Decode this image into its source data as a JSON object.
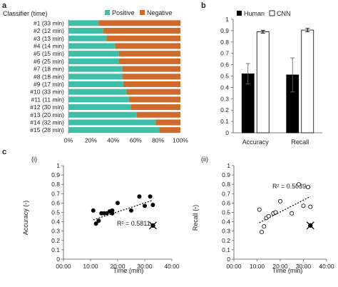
{
  "panels": {
    "a": "a",
    "b": "b",
    "c": "c",
    "c_i": "(i)",
    "c_ii": "(ii)"
  },
  "colors": {
    "positive": "#3dbfa8",
    "negative": "#cf6a2a",
    "human": "#000000",
    "cnn": "#ffffff"
  },
  "chart_data": [
    {
      "type": "bar",
      "orientation": "horizontal",
      "stacked": true,
      "title": "Classifier (time)",
      "categories": [
        "#1 (33 min)",
        "#2 (12 min)",
        "#3 (13 min)",
        "#4 (14 min)",
        "#5 (15 min)",
        "#6 (25 min)",
        "#7 (18 min)",
        "#8 (18 min)",
        "#9 (17 min)",
        "#10 (33 min)",
        "#11 (11 min)",
        "#12 (30 min)",
        "#13 (20 min)",
        "#14 (32 min)",
        "#15 (28 min)"
      ],
      "series": [
        {
          "name": "Positive",
          "values": [
            0.27,
            0.31,
            0.34,
            0.42,
            0.45,
            0.45,
            0.48,
            0.48,
            0.49,
            0.52,
            0.54,
            0.56,
            0.61,
            0.78,
            0.81
          ]
        },
        {
          "name": "Negative",
          "values": [
            0.73,
            0.69,
            0.66,
            0.58,
            0.55,
            0.55,
            0.52,
            0.52,
            0.51,
            0.48,
            0.46,
            0.44,
            0.39,
            0.22,
            0.19
          ]
        }
      ],
      "xticks": [
        "0%",
        "20%",
        "40%",
        "60%",
        "80%",
        "100%"
      ],
      "xlim": [
        0,
        1
      ],
      "legend": "top"
    },
    {
      "type": "bar",
      "categories": [
        "Accuracy",
        "Recall"
      ],
      "series": [
        {
          "name": "Human",
          "values": [
            0.52,
            0.51
          ],
          "errors": [
            0.09,
            0.15
          ]
        },
        {
          "name": "CNN",
          "values": [
            0.89,
            0.905
          ],
          "errors": [
            0.012,
            0.015
          ]
        }
      ],
      "yticks": [
        "0",
        "0.1",
        "0.2",
        "0.3",
        "0.4",
        "0.5",
        "0.6",
        "0.7",
        "0.8",
        "0.9",
        "1"
      ],
      "ylim": [
        0,
        1
      ],
      "legend": "top"
    },
    {
      "type": "scatter",
      "ylabel": "Accuracy (-)",
      "xlabel": "Time (min)",
      "x": [
        11,
        12,
        13,
        14,
        15,
        16,
        17,
        18,
        18,
        20,
        25,
        28,
        30,
        32,
        33
      ],
      "y": [
        0.52,
        0.38,
        0.41,
        0.49,
        0.49,
        0.49,
        0.51,
        0.49,
        0.52,
        0.6,
        0.52,
        0.67,
        0.57,
        0.67,
        0.58
      ],
      "marker": "filled",
      "special_point": {
        "x": 33,
        "y": 0.36
      },
      "trendline": {
        "type": "linear",
        "label": "R² = 0.5811",
        "x": [
          11,
          33
        ],
        "y": [
          0.42,
          0.63
        ]
      },
      "xticks": [
        "00:00",
        "10:00",
        "20:00",
        "30:00",
        "40:00"
      ],
      "xlim": [
        0,
        40
      ],
      "yticks": [
        "0",
        "0.1",
        "0.2",
        "0.3",
        "0.4",
        "0.5",
        "0.6",
        "0.7",
        "0.8",
        "0.9",
        "1"
      ],
      "ylim": [
        0,
        1
      ]
    },
    {
      "type": "scatter",
      "ylabel": "Recall (-)",
      "xlabel": "Time (min)",
      "x": [
        11,
        12,
        13,
        14,
        15,
        17,
        18,
        20,
        25,
        28,
        30,
        32,
        33
      ],
      "y": [
        0.53,
        0.29,
        0.35,
        0.44,
        0.46,
        0.49,
        0.5,
        0.62,
        0.49,
        0.8,
        0.57,
        0.77,
        0.56
      ],
      "marker": "hollow",
      "special_point": {
        "x": 33,
        "y": 0.36
      },
      "trendline": {
        "type": "linear",
        "label": "R² = 0.5039",
        "x": [
          11,
          33
        ],
        "y": [
          0.39,
          0.67
        ]
      },
      "xticks": [
        "00:00",
        "10:00",
        "20:00",
        "30:00",
        "40:00"
      ],
      "xlim": [
        0,
        40
      ],
      "yticks": [
        "0",
        "0.1",
        "0.2",
        "0.3",
        "0.4",
        "0.5",
        "0.6",
        "0.7",
        "0.8",
        "0.9",
        "1"
      ],
      "ylim": [
        0,
        1
      ]
    }
  ]
}
